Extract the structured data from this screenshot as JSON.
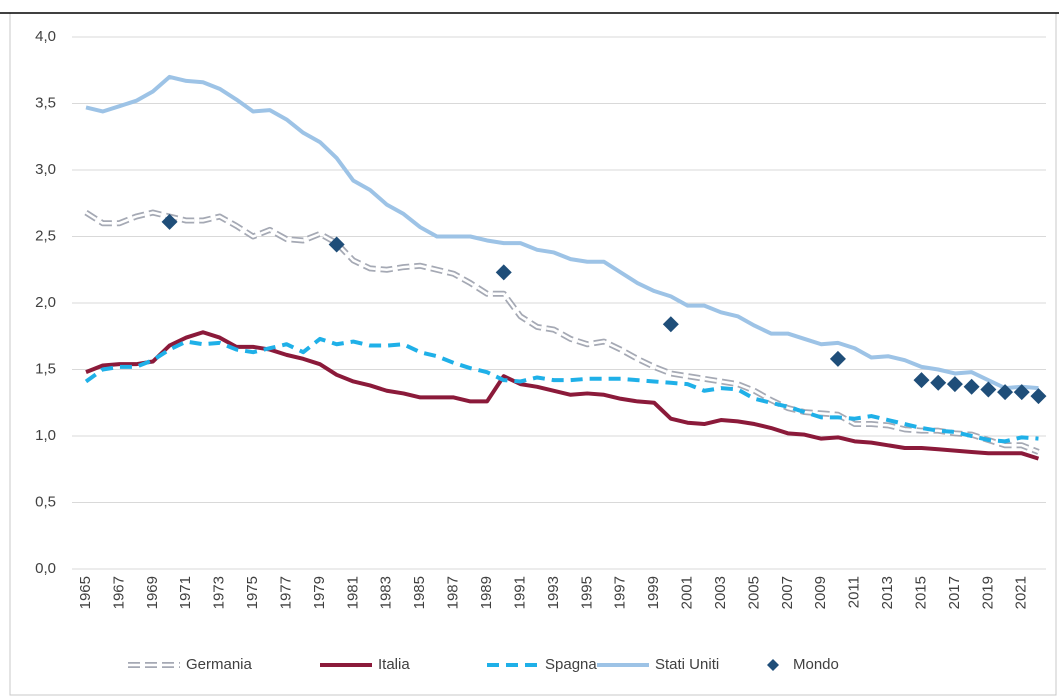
{
  "chart_data": {
    "type": "line",
    "categories": [
      "1965",
      null,
      "1967",
      null,
      "1969",
      null,
      "1971",
      null,
      "1973",
      null,
      "1975",
      null,
      "1977",
      null,
      "1979",
      null,
      "1981",
      null,
      "1983",
      null,
      "1985",
      null,
      "1987",
      null,
      "1989",
      null,
      "1991",
      null,
      "1993",
      null,
      "1995",
      null,
      "1997",
      null,
      "1999",
      null,
      "2001",
      null,
      "2003",
      null,
      "2005",
      null,
      "2007",
      null,
      "2009",
      null,
      "2011",
      null,
      "2013",
      null,
      "2015",
      null,
      "2017",
      null,
      "2019",
      null,
      "2021",
      null
    ],
    "ylim": [
      0,
      4
    ],
    "yticks": [
      {
        "value": 0,
        "label": "0,0"
      },
      {
        "value": 0.5,
        "label": "0,5"
      },
      {
        "value": 1,
        "label": "1,0"
      },
      {
        "value": 1.5,
        "label": "1,5"
      },
      {
        "value": 2,
        "label": "2,0"
      },
      {
        "value": 2.5,
        "label": "2,5"
      },
      {
        "value": 3,
        "label": "3,0"
      },
      {
        "value": 3.5,
        "label": "3,5"
      },
      {
        "value": 4,
        "label": "4,0"
      }
    ],
    "grid": true,
    "legend": "bottom",
    "series": [
      {
        "name": "Germania",
        "color": "#a5a9b4",
        "line_style": "double-dashed",
        "values": [
          2.68,
          2.6,
          2.6,
          2.65,
          2.68,
          2.65,
          2.62,
          2.62,
          2.65,
          2.58,
          2.5,
          2.55,
          2.48,
          2.47,
          2.52,
          2.45,
          2.32,
          2.26,
          2.25,
          2.27,
          2.28,
          2.25,
          2.22,
          2.15,
          2.07,
          2.07,
          1.9,
          1.82,
          1.8,
          1.73,
          1.69,
          1.71,
          1.65,
          1.58,
          1.52,
          1.47,
          1.45,
          1.43,
          1.41,
          1.39,
          1.34,
          1.27,
          1.21,
          1.18,
          1.17,
          1.16,
          1.09,
          1.09,
          1.08,
          1.05,
          1.04,
          1.04,
          1.02,
          1.01,
          0.97,
          0.93,
          0.93,
          0.88
        ]
      },
      {
        "name": "Italia",
        "color": "#8b1a3a",
        "line_style": "solid",
        "values": [
          1.48,
          1.53,
          1.54,
          1.54,
          1.56,
          1.68,
          1.74,
          1.78,
          1.74,
          1.67,
          1.67,
          1.65,
          1.61,
          1.58,
          1.54,
          1.46,
          1.41,
          1.38,
          1.34,
          1.32,
          1.29,
          1.29,
          1.29,
          1.26,
          1.26,
          1.45,
          1.39,
          1.37,
          1.34,
          1.31,
          1.32,
          1.31,
          1.28,
          1.26,
          1.25,
          1.13,
          1.1,
          1.09,
          1.12,
          1.11,
          1.09,
          1.06,
          1.02,
          1.01,
          0.98,
          0.99,
          0.96,
          0.95,
          0.93,
          0.91,
          0.91,
          0.9,
          0.89,
          0.88,
          0.87,
          0.87,
          0.87,
          0.83
        ]
      },
      {
        "name": "Spagna",
        "color": "#1fb0e8",
        "line_style": "dashed",
        "values": [
          1.41,
          1.5,
          1.52,
          1.52,
          1.57,
          1.65,
          1.71,
          1.69,
          1.7,
          1.65,
          1.63,
          1.66,
          1.69,
          1.63,
          1.73,
          1.69,
          1.71,
          1.68,
          1.68,
          1.69,
          1.63,
          1.6,
          1.55,
          1.51,
          1.48,
          1.42,
          1.41,
          1.44,
          1.42,
          1.42,
          1.43,
          1.43,
          1.43,
          1.42,
          1.41,
          1.4,
          1.39,
          1.34,
          1.36,
          1.35,
          1.28,
          1.25,
          1.22,
          1.18,
          1.14,
          1.14,
          1.13,
          1.15,
          1.12,
          1.09,
          1.06,
          1.04,
          1.03,
          1.0,
          0.97,
          0.96,
          0.99,
          0.98
        ]
      },
      {
        "name": "Stati Uniti",
        "color": "#9dc3e6",
        "line_style": "solid",
        "values": [
          3.47,
          3.44,
          3.48,
          3.52,
          3.59,
          3.7,
          3.67,
          3.66,
          3.61,
          3.53,
          3.44,
          3.45,
          3.38,
          3.28,
          3.21,
          3.09,
          2.92,
          2.85,
          2.74,
          2.67,
          2.57,
          2.5,
          2.5,
          2.5,
          2.47,
          2.45,
          2.45,
          2.4,
          2.38,
          2.33,
          2.31,
          2.31,
          2.23,
          2.15,
          2.09,
          2.05,
          1.98,
          1.98,
          1.93,
          1.9,
          1.83,
          1.77,
          1.77,
          1.73,
          1.69,
          1.7,
          1.66,
          1.59,
          1.6,
          1.57,
          1.52,
          1.5,
          1.47,
          1.48,
          1.42,
          1.36,
          1.37,
          1.36
        ]
      },
      {
        "name": "Mondo",
        "color": "#1f4e79",
        "marker": "diamond",
        "values": [
          null,
          null,
          null,
          null,
          null,
          2.61,
          null,
          null,
          null,
          null,
          null,
          null,
          null,
          null,
          null,
          2.44,
          null,
          null,
          null,
          null,
          null,
          null,
          null,
          null,
          null,
          2.23,
          null,
          null,
          null,
          null,
          null,
          null,
          null,
          null,
          null,
          1.84,
          null,
          null,
          null,
          null,
          null,
          null,
          null,
          null,
          null,
          1.58,
          null,
          null,
          null,
          null,
          1.42,
          1.4,
          1.39,
          1.37,
          1.35,
          1.33,
          1.33,
          1.3
        ]
      }
    ]
  }
}
